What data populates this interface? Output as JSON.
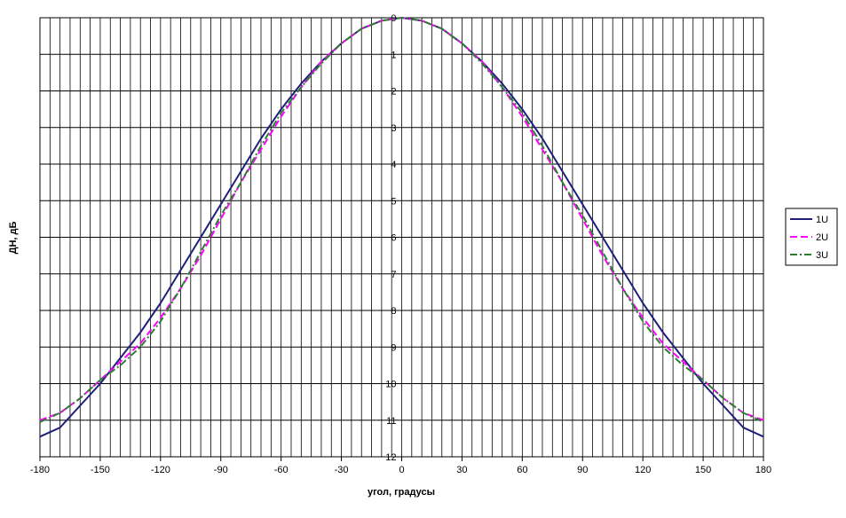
{
  "chart_data": {
    "type": "line",
    "y_label": "ДН, дБ",
    "x_label": "угол, градусы",
    "x": [
      -180,
      -170,
      -160,
      -150,
      -140,
      -130,
      -120,
      -110,
      -100,
      -90,
      -80,
      -70,
      -60,
      -50,
      -40,
      -30,
      -20,
      -10,
      0,
      10,
      20,
      30,
      40,
      50,
      60,
      70,
      80,
      90,
      100,
      110,
      120,
      130,
      140,
      150,
      160,
      170,
      180
    ],
    "series": [
      {
        "name": "1U",
        "color": "#1f1f7a",
        "style": "solid",
        "values": [
          11.45,
          11.2,
          10.6,
          10.0,
          9.3,
          8.6,
          7.8,
          6.9,
          6.0,
          5.1,
          4.2,
          3.3,
          2.5,
          1.8,
          1.2,
          0.7,
          0.3,
          0.08,
          0,
          0.08,
          0.3,
          0.7,
          1.2,
          1.8,
          2.5,
          3.3,
          4.2,
          5.1,
          6.0,
          6.9,
          7.8,
          8.6,
          9.3,
          10.0,
          10.6,
          11.2,
          11.45
        ]
      },
      {
        "name": "2U",
        "color": "#ff00ff",
        "style": "dashed",
        "values": [
          11.0,
          10.8,
          10.4,
          9.9,
          9.4,
          8.9,
          8.2,
          7.4,
          6.5,
          5.5,
          4.5,
          3.6,
          2.7,
          1.9,
          1.2,
          0.7,
          0.3,
          0.08,
          0,
          0.08,
          0.3,
          0.7,
          1.2,
          1.9,
          2.7,
          3.6,
          4.5,
          5.5,
          6.5,
          7.4,
          8.2,
          8.9,
          9.4,
          9.9,
          10.4,
          10.8,
          11.0
        ]
      },
      {
        "name": "3U",
        "color": "#2e7d32",
        "style": "dashdot",
        "values": [
          11.05,
          10.8,
          10.4,
          9.9,
          9.5,
          9.0,
          8.3,
          7.4,
          6.4,
          5.4,
          4.5,
          3.5,
          2.6,
          1.9,
          1.25,
          0.7,
          0.3,
          0.08,
          0,
          0.08,
          0.3,
          0.7,
          1.25,
          1.9,
          2.6,
          3.5,
          4.5,
          5.4,
          6.4,
          7.4,
          8.3,
          9.0,
          9.5,
          9.9,
          10.4,
          10.8,
          11.05
        ]
      }
    ],
    "xlim": [
      -180,
      180
    ],
    "xticks": [
      -180,
      -150,
      -120,
      -90,
      -60,
      -30,
      0,
      30,
      60,
      90,
      120,
      150,
      180
    ],
    "x_grid_step": 5,
    "ylim": [
      0,
      12
    ],
    "yticks": [
      0,
      1,
      2,
      3,
      4,
      5,
      6,
      7,
      8,
      9,
      10,
      11,
      12
    ],
    "y_inverted": true,
    "grid": true,
    "legend": "right"
  }
}
